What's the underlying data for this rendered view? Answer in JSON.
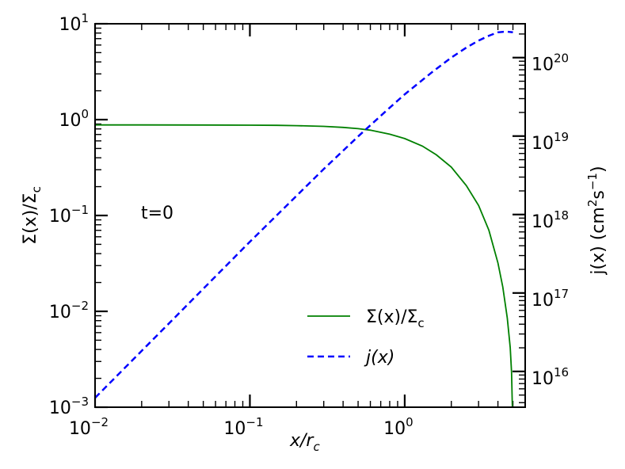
{
  "chart_data": {
    "type": "line",
    "annotation": "t=0",
    "x_axis": {
      "label_main": "x/r",
      "label_sub": "c",
      "scale": "log",
      "range": [
        0.01,
        6.0
      ],
      "ticks": [
        {
          "value": 0.01,
          "base": "10",
          "exp": "−2"
        },
        {
          "value": 0.1,
          "base": "10",
          "exp": "−1"
        },
        {
          "value": 1,
          "base": "10",
          "exp": "0"
        }
      ]
    },
    "y_left": {
      "label": "Σ(x)/Σ",
      "label_sub": "c",
      "scale": "log",
      "range": [
        0.001,
        10
      ],
      "ticks": [
        {
          "value": 10,
          "base": "10",
          "exp": "1"
        },
        {
          "value": 1,
          "base": "10",
          "exp": "0"
        },
        {
          "value": 0.1,
          "base": "10",
          "exp": "−1"
        },
        {
          "value": 0.01,
          "base": "10",
          "exp": "−2"
        },
        {
          "value": 0.001,
          "base": "10",
          "exp": "−3"
        }
      ]
    },
    "y_right": {
      "label_pre": "j(x) (cm",
      "label_sup1": "2",
      "label_mid": "s",
      "label_sup2": "−1",
      "label_post": ")",
      "scale": "log",
      "range": [
        3500000000000000.0,
        2.7e+20
      ],
      "ticks": [
        {
          "value": 1e+20,
          "base": "10",
          "exp": "20"
        },
        {
          "value": 1e+19,
          "base": "10",
          "exp": "19"
        },
        {
          "value": 1e+18,
          "base": "10",
          "exp": "18"
        },
        {
          "value": 1e+17,
          "base": "10",
          "exp": "17"
        },
        {
          "value": 1e+16,
          "base": "10",
          "exp": "16"
        }
      ]
    },
    "series": [
      {
        "name": "Σ(x)/Σ",
        "name_sub": "c",
        "axis": "left",
        "color": "#008000",
        "style": "solid",
        "x": [
          0.01,
          0.02,
          0.05,
          0.1,
          0.15,
          0.2,
          0.3,
          0.4,
          0.5,
          0.6,
          0.8,
          1.0,
          1.3,
          1.6,
          2.0,
          2.5,
          3.0,
          3.5,
          4.0,
          4.3,
          4.6,
          4.8,
          4.9,
          4.96
        ],
        "y": [
          0.88,
          0.88,
          0.879,
          0.876,
          0.872,
          0.866,
          0.85,
          0.83,
          0.805,
          0.776,
          0.705,
          0.635,
          0.53,
          0.43,
          0.32,
          0.205,
          0.127,
          0.07,
          0.032,
          0.018,
          0.0085,
          0.0042,
          0.0023,
          0.001
        ]
      },
      {
        "name": "j(x)",
        "axis": "right",
        "color": "#0000ff",
        "style": "dashed",
        "x": [
          0.01,
          0.03,
          0.1,
          0.3,
          0.5,
          0.8,
          1.0,
          1.5,
          2.0,
          2.5,
          3.0,
          3.5,
          4.0,
          4.5,
          5.0
        ],
        "y": [
          4600000000000000.0,
          4.1e+16,
          4.5e+17,
          3.8e+18,
          9.9e+18,
          2.3e+19,
          3.4e+19,
          6.5e+19,
          1e+20,
          1.34e+20,
          1.65e+20,
          1.9e+20,
          2.1e+20,
          2.15e+20,
          2.1e+20
        ]
      }
    ],
    "legend": {
      "placement": "lower-right"
    }
  }
}
